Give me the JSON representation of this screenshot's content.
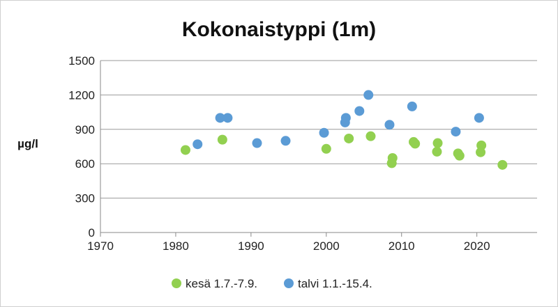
{
  "chart_data": {
    "type": "scatter",
    "title": "Kokonaistyppi (1m)",
    "xlabel": "",
    "ylabel": "µg/l",
    "xlim": [
      1970,
      2028
    ],
    "ylim": [
      0,
      1500
    ],
    "x_ticks": [
      1970,
      1980,
      1990,
      2000,
      2010,
      2020
    ],
    "y_ticks": [
      0,
      300,
      600,
      900,
      1200,
      1500
    ],
    "grid": "horizontal",
    "legend_position": "bottom",
    "series": [
      {
        "name": "kesä 1.7.-7.9.",
        "color": "#92d050",
        "points": [
          {
            "x": 1981.3,
            "y": 720
          },
          {
            "x": 1986.2,
            "y": 810
          },
          {
            "x": 2000.0,
            "y": 730
          },
          {
            "x": 2003.0,
            "y": 820
          },
          {
            "x": 2005.9,
            "y": 840
          },
          {
            "x": 2008.8,
            "y": 650
          },
          {
            "x": 2008.7,
            "y": 605
          },
          {
            "x": 2011.6,
            "y": 790
          },
          {
            "x": 2011.8,
            "y": 775
          },
          {
            "x": 2014.8,
            "y": 780
          },
          {
            "x": 2014.7,
            "y": 705
          },
          {
            "x": 2017.5,
            "y": 690
          },
          {
            "x": 2017.7,
            "y": 670
          },
          {
            "x": 2020.6,
            "y": 760
          },
          {
            "x": 2020.5,
            "y": 700
          },
          {
            "x": 2023.4,
            "y": 590
          }
        ]
      },
      {
        "name": "talvi 1.1.-15.4.",
        "color": "#5b9bd5",
        "points": [
          {
            "x": 1982.9,
            "y": 770
          },
          {
            "x": 1985.9,
            "y": 1000
          },
          {
            "x": 1986.9,
            "y": 1000
          },
          {
            "x": 1990.8,
            "y": 780
          },
          {
            "x": 1994.6,
            "y": 800
          },
          {
            "x": 1999.7,
            "y": 870
          },
          {
            "x": 2002.6,
            "y": 1000
          },
          {
            "x": 2002.5,
            "y": 960
          },
          {
            "x": 2004.4,
            "y": 1060
          },
          {
            "x": 2005.6,
            "y": 1200
          },
          {
            "x": 2008.4,
            "y": 940
          },
          {
            "x": 2011.4,
            "y": 1100
          },
          {
            "x": 2017.2,
            "y": 880
          },
          {
            "x": 2020.3,
            "y": 1000
          }
        ]
      }
    ]
  }
}
